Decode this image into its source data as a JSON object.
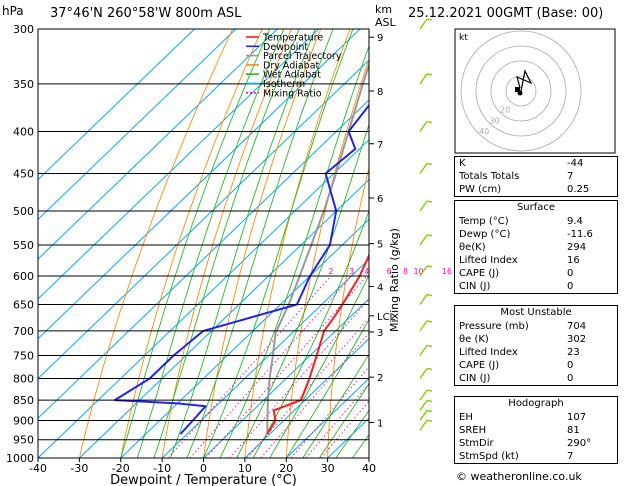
{
  "header": {
    "pressure_unit": "hPa",
    "location": "37°46'N  260°58'W  800m  ASL",
    "km_label": "km",
    "asl_label": "ASL",
    "datetime": "25.12.2021  00GMT  (Base: 00)"
  },
  "chart_data": {
    "type": "skew-t",
    "xlabel": "Dewpoint / Temperature (°C)",
    "ylabel": "hPa",
    "mixing_ratio_axis_label": "Mixing Ratio (g/kg)",
    "xlim": [
      -40,
      40
    ],
    "ylim": [
      1000,
      300
    ],
    "x_ticks": [
      -40,
      -30,
      -20,
      -10,
      0,
      10,
      20,
      30,
      40
    ],
    "pressure_levels": [
      300,
      350,
      400,
      450,
      500,
      550,
      600,
      650,
      700,
      750,
      800,
      850,
      900,
      950,
      1000
    ],
    "km_ticks": [
      {
        "km": "9",
        "p": 307
      },
      {
        "km": "8",
        "p": 357
      },
      {
        "km": "7",
        "p": 414
      },
      {
        "km": "6",
        "p": 482
      },
      {
        "km": "5",
        "p": 548
      },
      {
        "km": "4",
        "p": 618
      },
      {
        "km": "LCL",
        "p": 671
      },
      {
        "km": "3",
        "p": 702
      },
      {
        "km": "2",
        "p": 797
      },
      {
        "km": "1",
        "p": 905
      }
    ],
    "mixing_ratio_labels": [
      "2",
      "3",
      "4",
      "6",
      "8",
      "10",
      "16",
      "20",
      "25"
    ],
    "legend": [
      "Temperature",
      "Dewpoint",
      "Parcel Trajectory",
      "Dry Adiabat",
      "Wet Adiabat",
      "Isotherm",
      "Mixing Ratio"
    ],
    "colors": {
      "temperature": "#ff1a1a",
      "dewpoint": "#2222ee",
      "parcel": "#999999",
      "dry_adiabat": "#ff8c00",
      "wet_adiabat": "#22bb22",
      "isotherm": "#00aaff",
      "mixing_ratio": "#ff00aa"
    },
    "temperature_profile": [
      {
        "p": 935,
        "t": 9.4
      },
      {
        "p": 900,
        "t": 8.0
      },
      {
        "p": 875,
        "t": 5.0
      },
      {
        "p": 850,
        "t": 9.0
      },
      {
        "p": 800,
        "t": 5.6
      },
      {
        "p": 750,
        "t": 1.6
      },
      {
        "p": 700,
        "t": -2.8
      },
      {
        "p": 670,
        "t": -4.0
      },
      {
        "p": 650,
        "t": -5.0
      },
      {
        "p": 600,
        "t": -8.0
      },
      {
        "p": 550,
        "t": -12.4
      },
      {
        "p": 500,
        "t": -17.8
      },
      {
        "p": 450,
        "t": -23.4
      },
      {
        "p": 400,
        "t": -29.6
      },
      {
        "p": 350,
        "t": -36.5
      },
      {
        "p": 300,
        "t": -44.5
      }
    ],
    "dewpoint_profile": [
      {
        "p": 935,
        "t": -11.6
      },
      {
        "p": 900,
        "t": -12.0
      },
      {
        "p": 865,
        "t": -12.5
      },
      {
        "p": 858,
        "t": -20.0
      },
      {
        "p": 850,
        "t": -36.0
      },
      {
        "p": 800,
        "t": -33.0
      },
      {
        "p": 750,
        "t": -33.0
      },
      {
        "p": 700,
        "t": -32.0
      },
      {
        "p": 650,
        "t": -16.0
      },
      {
        "p": 600,
        "t": -20.0
      },
      {
        "p": 550,
        "t": -23.0
      },
      {
        "p": 500,
        "t": -30.0
      },
      {
        "p": 450,
        "t": -42.0
      },
      {
        "p": 420,
        "t": -41.0
      },
      {
        "p": 400,
        "t": -47.0
      },
      {
        "p": 350,
        "t": -50.0
      },
      {
        "p": 300,
        "t": -57.0
      }
    ],
    "parcel_profile": [
      {
        "p": 935,
        "t": 9.4
      },
      {
        "p": 900,
        "t": 6.0
      },
      {
        "p": 850,
        "t": 1.0
      },
      {
        "p": 800,
        "t": -4.0
      },
      {
        "p": 750,
        "t": -9.0
      },
      {
        "p": 704,
        "t": -14.0
      },
      {
        "p": 650,
        "t": -18.0
      },
      {
        "p": 600,
        "t": -22.5
      },
      {
        "p": 550,
        "t": -27.5
      },
      {
        "p": 500,
        "t": -33.0
      },
      {
        "p": 450,
        "t": -39.5
      },
      {
        "p": 400,
        "t": -47.0
      },
      {
        "p": 350,
        "t": -55.5
      },
      {
        "p": 300,
        "t": -65.0
      }
    ]
  },
  "hodograph": {
    "label": "kt",
    "rings": [
      "10",
      "20",
      "30",
      "40"
    ]
  },
  "indices": {
    "rows": [
      {
        "label": "K",
        "value": "-44"
      },
      {
        "label": "Totals Totals",
        "value": "7"
      },
      {
        "label": "PW (cm)",
        "value": "0.25"
      }
    ]
  },
  "surface": {
    "title": "Surface",
    "rows": [
      {
        "label": "Temp (°C)",
        "value": "9.4"
      },
      {
        "label": "Dewp (°C)",
        "value": "-11.6"
      },
      {
        "label": "θe(K)",
        "value": "294"
      },
      {
        "label": "Lifted Index",
        "value": "16"
      },
      {
        "label": "CAPE (J)",
        "value": "0"
      },
      {
        "label": "CIN (J)",
        "value": "0"
      }
    ]
  },
  "most_unstable": {
    "title": "Most Unstable",
    "rows": [
      {
        "label": "Pressure (mb)",
        "value": "704"
      },
      {
        "label": "θe (K)",
        "value": "302"
      },
      {
        "label": "Lifted Index",
        "value": "23"
      },
      {
        "label": "CAPE (J)",
        "value": "0"
      },
      {
        "label": "CIN (J)",
        "value": "0"
      }
    ]
  },
  "hodograph_table": {
    "title": "Hodograph",
    "rows": [
      {
        "label": "EH",
        "value": "107"
      },
      {
        "label": "SREH",
        "value": "81"
      },
      {
        "label": "StmDir",
        "value": "290°"
      },
      {
        "label": "StmSpd (kt)",
        "value": "7"
      }
    ]
  },
  "footer": "© weatheronline.co.uk"
}
